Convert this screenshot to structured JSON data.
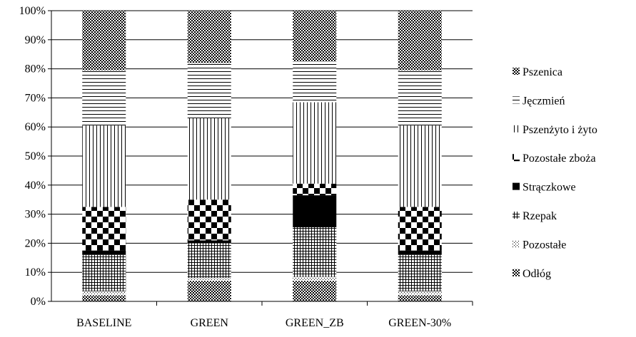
{
  "chart_data": {
    "type": "bar",
    "stacked": true,
    "percent": true,
    "categories": [
      "BASELINE",
      "GREEN",
      "GREEN_ZB",
      "GREEN-30%"
    ],
    "yticks": [
      "0%",
      "10%",
      "20%",
      "30%",
      "40%",
      "50%",
      "60%",
      "70%",
      "80%",
      "90%",
      "100%"
    ],
    "ylim": [
      0,
      100
    ],
    "grid": true,
    "legend_position": "right",
    "series": [
      {
        "name": "Odłóg",
        "pattern": "dense-check",
        "values": [
          2,
          7,
          7,
          2
        ]
      },
      {
        "name": "Pozostałe",
        "pattern": "hourglass",
        "values": [
          1.5,
          1,
          1.5,
          1.5
        ]
      },
      {
        "name": "Rzepak",
        "pattern": "grid",
        "values": [
          12.5,
          12,
          17,
          12.5
        ]
      },
      {
        "name": "Strączkowe",
        "pattern": "solid-black",
        "values": [
          1.5,
          1,
          11,
          1.5
        ]
      },
      {
        "name": "Pozostałe zboża",
        "pattern": "checker",
        "values": [
          15,
          14,
          4,
          15
        ]
      },
      {
        "name": "Pszenżyto i żyto",
        "pattern": "vertical-lines",
        "values": [
          28,
          28,
          28,
          28
        ]
      },
      {
        "name": "Jęczmień",
        "pattern": "horizontal-lines",
        "values": [
          19,
          19,
          14,
          19
        ]
      },
      {
        "name": "Pszenica",
        "pattern": "dense-check",
        "values": [
          20.5,
          18,
          17.5,
          20.5
        ]
      }
    ]
  }
}
